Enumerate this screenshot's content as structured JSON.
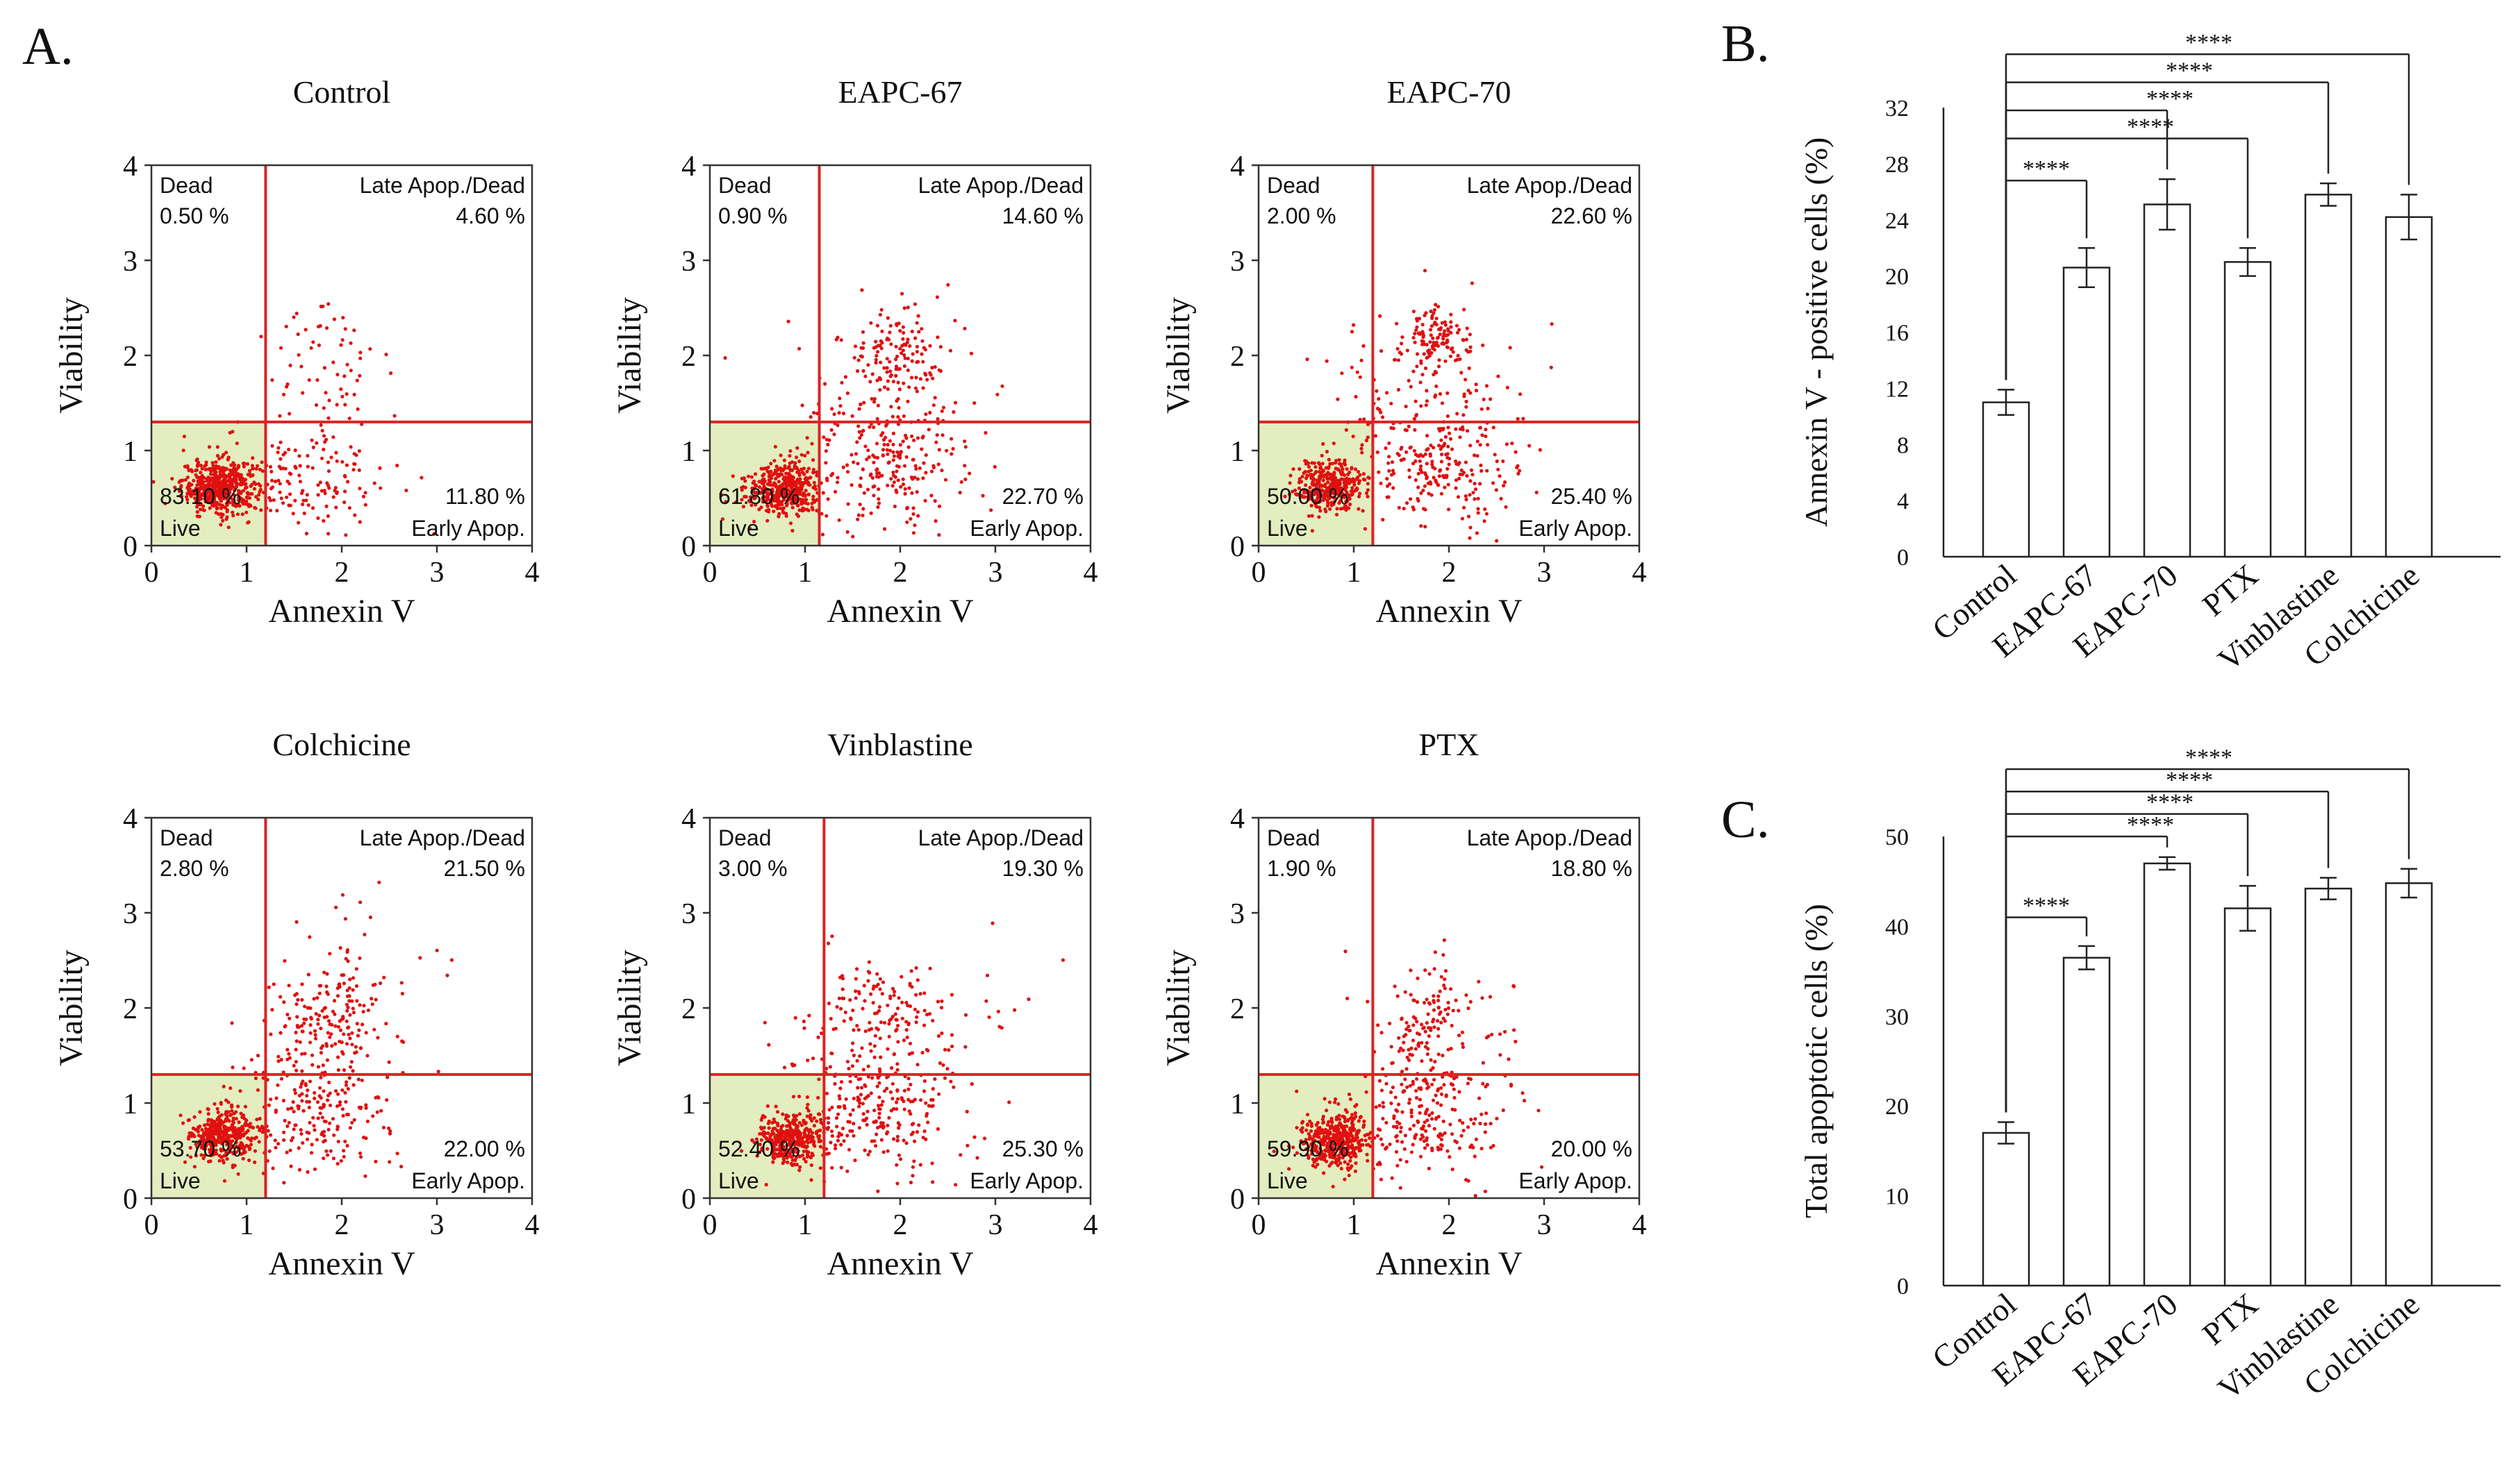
{
  "panel_labels": {
    "a": "A.",
    "b": "B.",
    "c": "C."
  },
  "scatter_common": {
    "x_axis_label": "Annexin V",
    "y_axis_label": "Viability",
    "ticks": [
      "0",
      "1",
      "2",
      "3",
      "4"
    ],
    "q_dead": "Dead",
    "q_late": "Late Apop./Dead",
    "q_live": "Live",
    "q_early": "Early Apop.",
    "gate_color": "#dd2222",
    "live_fill": "#e3edbf",
    "dot_color": "#e01010"
  },
  "chart_data": [
    {
      "type": "scatter",
      "title": "Control",
      "xlabel": "Annexin V",
      "ylabel": "Viability",
      "xlim": [
        0,
        4
      ],
      "ylim": [
        0,
        4
      ],
      "gates": {
        "x": 1.2,
        "y": 1.3
      },
      "quadrants": {
        "dead": "0.50 %",
        "late": "4.60 %",
        "live": "83.10 %",
        "early": "11.80 %"
      },
      "clusters": [
        {
          "x": 0.72,
          "y": 0.62,
          "sx": 0.2,
          "sy": 0.14,
          "n": 520
        },
        {
          "x": 1.65,
          "y": 0.75,
          "sx": 0.45,
          "sy": 0.3,
          "n": 140
        },
        {
          "x": 1.9,
          "y": 1.9,
          "sx": 0.35,
          "sy": 0.4,
          "n": 60
        }
      ]
    },
    {
      "type": "scatter",
      "title": "EAPC-67",
      "xlabel": "Annexin V",
      "ylabel": "Viability",
      "xlim": [
        0,
        4
      ],
      "ylim": [
        0,
        4
      ],
      "gates": {
        "x": 1.15,
        "y": 1.3
      },
      "quadrants": {
        "dead": "0.90 %",
        "late": "14.60 %",
        "live": "61.80 %",
        "early": "22.70 %"
      },
      "clusters": [
        {
          "x": 0.78,
          "y": 0.6,
          "sx": 0.2,
          "sy": 0.14,
          "n": 420
        },
        {
          "x": 1.8,
          "y": 0.85,
          "sx": 0.45,
          "sy": 0.35,
          "n": 230
        },
        {
          "x": 1.95,
          "y": 2.05,
          "sx": 0.25,
          "sy": 0.25,
          "n": 120
        },
        {
          "x": 1.8,
          "y": 1.6,
          "sx": 0.5,
          "sy": 0.4,
          "n": 60
        }
      ]
    },
    {
      "type": "scatter",
      "title": "EAPC-70",
      "xlabel": "Annexin V",
      "ylabel": "Viability",
      "xlim": [
        0,
        4
      ],
      "ylim": [
        0,
        4
      ],
      "gates": {
        "x": 1.2,
        "y": 1.3
      },
      "quadrants": {
        "dead": "2.00 %",
        "late": "22.60 %",
        "live": "50.00 %",
        "early": "25.40 %"
      },
      "clusters": [
        {
          "x": 0.75,
          "y": 0.62,
          "sx": 0.18,
          "sy": 0.14,
          "n": 360
        },
        {
          "x": 1.8,
          "y": 0.85,
          "sx": 0.45,
          "sy": 0.35,
          "n": 250
        },
        {
          "x": 1.85,
          "y": 2.2,
          "sx": 0.18,
          "sy": 0.14,
          "n": 110
        },
        {
          "x": 1.85,
          "y": 1.7,
          "sx": 0.55,
          "sy": 0.45,
          "n": 90
        }
      ]
    },
    {
      "type": "scatter",
      "title": "Colchicine",
      "xlabel": "Annexin V",
      "ylabel": "Viability",
      "xlim": [
        0,
        4
      ],
      "ylim": [
        0,
        4
      ],
      "gates": {
        "x": 1.2,
        "y": 1.3
      },
      "quadrants": {
        "dead": "2.80 %",
        "late": "21.50 %",
        "live": "53.70 %",
        "early": "22.00 %"
      },
      "clusters": [
        {
          "x": 0.75,
          "y": 0.65,
          "sx": 0.18,
          "sy": 0.14,
          "n": 380
        },
        {
          "x": 1.7,
          "y": 0.9,
          "sx": 0.4,
          "sy": 0.35,
          "n": 230
        },
        {
          "x": 1.8,
          "y": 1.95,
          "sx": 0.3,
          "sy": 0.3,
          "n": 140
        },
        {
          "x": 2.2,
          "y": 2.2,
          "sx": 0.6,
          "sy": 0.5,
          "n": 40
        }
      ]
    },
    {
      "type": "scatter",
      "title": "Vinblastine",
      "xlabel": "Annexin V",
      "ylabel": "Viability",
      "xlim": [
        0,
        4
      ],
      "ylim": [
        0,
        4
      ],
      "gates": {
        "x": 1.2,
        "y": 1.3
      },
      "quadrants": {
        "dead": "3.00 %",
        "late": "19.30 %",
        "live": "52.40 %",
        "early": "25.30 %"
      },
      "clusters": [
        {
          "x": 0.85,
          "y": 0.62,
          "sx": 0.18,
          "sy": 0.14,
          "n": 380
        },
        {
          "x": 1.7,
          "y": 0.95,
          "sx": 0.45,
          "sy": 0.35,
          "n": 250
        },
        {
          "x": 1.75,
          "y": 1.95,
          "sx": 0.3,
          "sy": 0.3,
          "n": 130
        },
        {
          "x": 2.4,
          "y": 2.0,
          "sx": 0.6,
          "sy": 0.5,
          "n": 30
        }
      ]
    },
    {
      "type": "scatter",
      "title": "PTX",
      "xlabel": "Annexin V",
      "ylabel": "Viability",
      "xlim": [
        0,
        4
      ],
      "ylim": [
        0,
        4
      ],
      "gates": {
        "x": 1.2,
        "y": 1.3
      },
      "quadrants": {
        "dead": "1.90 %",
        "late": "18.80 %",
        "live": "59.90 %",
        "early": "20.00 %"
      },
      "clusters": [
        {
          "x": 0.8,
          "y": 0.62,
          "sx": 0.18,
          "sy": 0.14,
          "n": 420
        },
        {
          "x": 1.7,
          "y": 0.85,
          "sx": 0.4,
          "sy": 0.35,
          "n": 220
        },
        {
          "x": 1.75,
          "y": 1.8,
          "sx": 0.22,
          "sy": 0.35,
          "n": 120
        },
        {
          "x": 2.3,
          "y": 2.0,
          "sx": 0.6,
          "sy": 0.45,
          "n": 30
        }
      ]
    },
    {
      "type": "bar",
      "panel": "B.",
      "ylabel": "Annexin V - positive cells (%)",
      "xlabel": "",
      "categories": [
        "Control",
        "EAPC-67",
        "EAPC-70",
        "PTX",
        "Vinblastine",
        "Colchicine"
      ],
      "values": [
        11.0,
        20.6,
        25.1,
        21.0,
        25.8,
        24.2
      ],
      "errors": [
        0.9,
        1.4,
        1.8,
        1.0,
        0.8,
        1.6
      ],
      "ylim": [
        0,
        32
      ],
      "yticks": [
        "0",
        "4",
        "8",
        "12",
        "16",
        "20",
        "24",
        "28",
        "32"
      ],
      "significance": [
        {
          "from": 0,
          "to": 1,
          "label": "****"
        },
        {
          "from": 0,
          "to": 3,
          "label": "****"
        },
        {
          "from": 0,
          "to": 2,
          "label": "****"
        },
        {
          "from": 0,
          "to": 4,
          "label": "****"
        },
        {
          "from": 0,
          "to": 5,
          "label": "****"
        }
      ]
    },
    {
      "type": "bar",
      "panel": "C.",
      "ylabel": "Total apoptotic cells (%)",
      "xlabel": "",
      "categories": [
        "Control",
        "EAPC-67",
        "EAPC-70",
        "PTX",
        "Vinblastine",
        "Colchicine"
      ],
      "values": [
        17.0,
        36.5,
        47.0,
        42.0,
        44.2,
        44.8
      ],
      "errors": [
        1.2,
        1.3,
        0.7,
        2.5,
        1.2,
        1.6
      ],
      "ylim": [
        0,
        50
      ],
      "yticks": [
        "0",
        "10",
        "20",
        "30",
        "40",
        "50"
      ],
      "significance": [
        {
          "from": 0,
          "to": 1,
          "label": "****"
        },
        {
          "from": 0,
          "to": 2,
          "label": "****"
        },
        {
          "from": 0,
          "to": 3,
          "label": "****"
        },
        {
          "from": 0,
          "to": 4,
          "label": "****"
        },
        {
          "from": 0,
          "to": 5,
          "label": "****"
        }
      ]
    }
  ]
}
